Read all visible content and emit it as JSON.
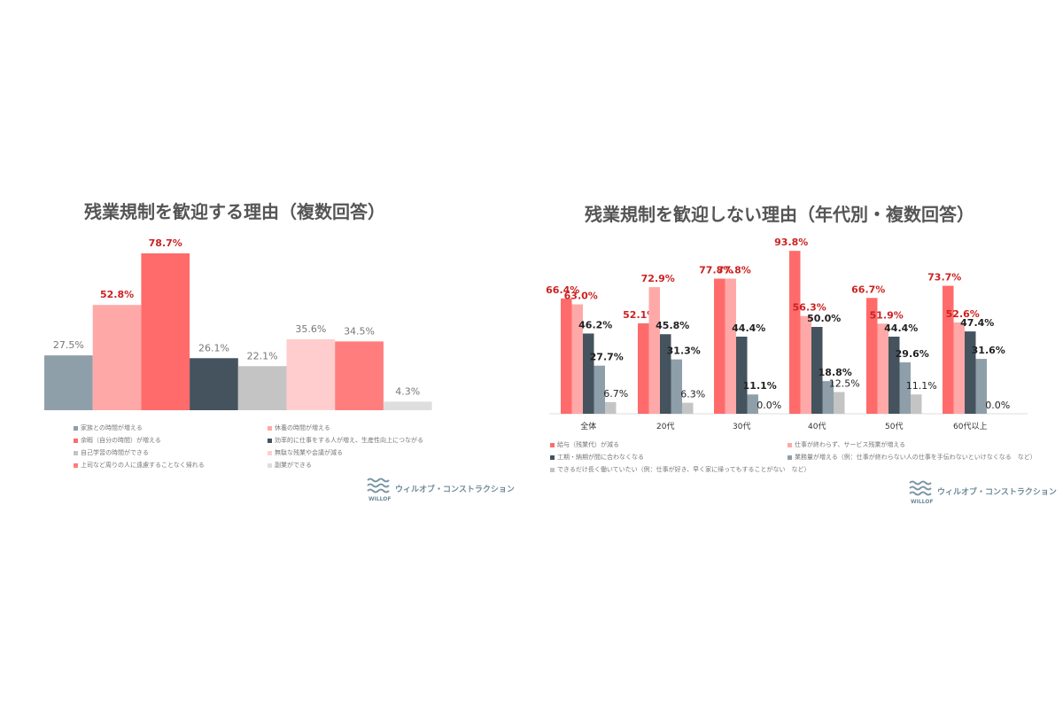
{
  "chart_data": [
    {
      "type": "bar",
      "title": "残業規制を歓迎する理由（複数回答）",
      "categories": [
        "家族との時間が増える",
        "休養の時間が増える",
        "余暇（自分の時間）が増える",
        "効率的に仕事をする人が増え、生産性向上につながる",
        "自己学習の時間ができる",
        "無駄な残業や会議が減る",
        "上司など周りの人に遠慮することなく帰れる",
        "副業ができる"
      ],
      "values": [
        27.5,
        52.8,
        78.7,
        26.1,
        22.1,
        35.6,
        34.5,
        4.3
      ],
      "value_labels": [
        "27.5%",
        "52.8%",
        "78.7%",
        "26.1%",
        "22.1%",
        "35.6%",
        "34.5%",
        "4.3%"
      ],
      "colors": [
        "#8e9faa",
        "#ffa8a8",
        "#ff6b6b",
        "#44535e",
        "#c4c4c4",
        "#ffcdcd",
        "#ff7d7d",
        "#dedede"
      ],
      "highlight": [
        false,
        true,
        true,
        false,
        false,
        false,
        false,
        false
      ],
      "ylim": [
        0,
        100
      ]
    },
    {
      "type": "bar",
      "title": "残業規制を歓迎しない理由（年代別・複数回答）",
      "categories": [
        "全体",
        "20代",
        "30代",
        "40代",
        "50代",
        "60代以上"
      ],
      "series": [
        {
          "name": "給与（残業代）が減る",
          "color": "#ff6b6b",
          "values": [
            66.4,
            52.1,
            77.8,
            93.8,
            66.7,
            73.7
          ],
          "labels": [
            "66.4%",
            "52.1%",
            "77.8%",
            "93.8%",
            "66.7%",
            "73.7%"
          ]
        },
        {
          "name": "仕事が終わらず、サービス残業が増える",
          "color": "#ffa8a8",
          "values": [
            63.0,
            72.9,
            77.8,
            56.3,
            51.9,
            52.6
          ],
          "labels": [
            "63.0%",
            "72.9%",
            "77.8%",
            "56.3%",
            "51.9%",
            "52.6%"
          ]
        },
        {
          "name": "工期・納期が間に合わなくなる",
          "color": "#44535e",
          "values": [
            46.2,
            45.8,
            44.4,
            50.0,
            44.4,
            47.4
          ],
          "labels": [
            "46.2%",
            "45.8%",
            "44.4%",
            "50.0%",
            "44.4%",
            "47.4%"
          ]
        },
        {
          "name": "業務量が増える（例：仕事が終わらない人の仕事を手伝わないといけなくなる　など）",
          "color": "#8e9faa",
          "values": [
            27.7,
            31.3,
            11.1,
            18.8,
            29.6,
            31.6
          ],
          "labels": [
            "27.7%",
            "31.3%",
            "11.1%",
            "18.8%",
            "29.6%",
            "31.6%"
          ]
        },
        {
          "name": "できるだけ長く働いていたい（例：仕事が好き、早く家に帰ってもすることがない　など）",
          "color": "#c4c4c4",
          "values": [
            6.7,
            6.3,
            0.0,
            12.5,
            11.1,
            0.0
          ],
          "labels": [
            "6.7%",
            "6.3%",
            "0.0%",
            "12.5%",
            "11.1%",
            "0.0%"
          ]
        }
      ],
      "ylim": [
        0,
        100
      ]
    }
  ],
  "brand": {
    "text": "ウィルオブ・コンストラクション",
    "sub": "WILLOF",
    "wave_color": "#7c95a6"
  },
  "label_colors": {
    "highlight": "#cc2222",
    "normal": "#222222",
    "muted": "#777777"
  }
}
